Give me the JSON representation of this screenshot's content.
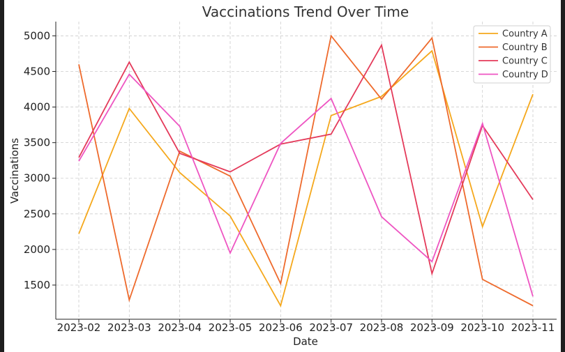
{
  "chart_data": {
    "type": "line",
    "title": "Vaccinations Trend Over Time",
    "xlabel": "Date",
    "ylabel": "Vaccinations",
    "categories": [
      "2023-02",
      "2023-03",
      "2023-04",
      "2023-05",
      "2023-06",
      "2023-07",
      "2023-08",
      "2023-09",
      "2023-10",
      "2023-11"
    ],
    "yticks": [
      1500,
      2000,
      2500,
      3000,
      3500,
      4000,
      4500,
      5000
    ],
    "ylim": [
      1020,
      5200
    ],
    "grid": true,
    "legend_position": "top-right",
    "series": [
      {
        "name": "Country A",
        "color": "#f5a81c",
        "values": [
          2220,
          3980,
          3080,
          2470,
          1210,
          3880,
          4150,
          4790,
          2320,
          4180
        ]
      },
      {
        "name": "Country B",
        "color": "#ee6a2c",
        "values": [
          4600,
          1290,
          3380,
          3030,
          1520,
          5000,
          4110,
          4970,
          1580,
          1210
        ]
      },
      {
        "name": "Country C",
        "color": "#e43a5a",
        "values": [
          3290,
          4630,
          3350,
          3090,
          3480,
          3620,
          4870,
          1660,
          3740,
          2700
        ]
      },
      {
        "name": "Country D",
        "color": "#ee55c2",
        "values": [
          3240,
          4460,
          3730,
          1950,
          3490,
          4120,
          2460,
          1830,
          3770,
          1340
        ]
      }
    ]
  }
}
